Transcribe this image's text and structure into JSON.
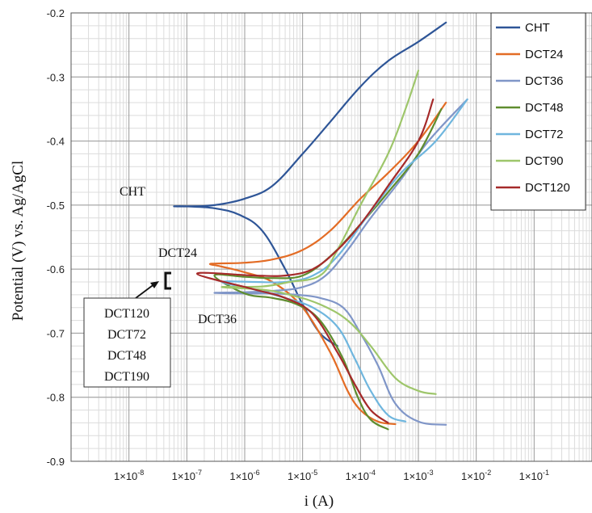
{
  "chart_data": {
    "type": "line",
    "title": "",
    "xlabel": "i (A)",
    "ylabel": "Potential (V)  vs. Ag/AgCl",
    "xscale": "log",
    "xlim": [
      1e-09,
      1
    ],
    "ylim": [
      -0.9,
      -0.2
    ],
    "x_tick_labels": [
      "1×10-8",
      "1×10-7",
      "1×10-6",
      "1×10-5",
      "1×10-4",
      "1×10-3",
      "1×10-2",
      "1×10-1"
    ],
    "y_tick_labels": [
      "-0.2",
      "-0.3",
      "-0.4",
      "-0.5",
      "-0.6",
      "-0.7",
      "-0.8",
      "-0.9"
    ],
    "grid": true,
    "legend_position": "top-right",
    "series": [
      {
        "name": "CHT",
        "color": "#2e5597",
        "x": [
          4e-05,
          2e-05,
          1e-05,
          5e-06,
          2e-06,
          8e-07,
          3e-07,
          1e-07,
          6e-08,
          1e-07,
          3e-07,
          1e-06,
          3e-06,
          1e-05,
          3e-05,
          0.0001,
          0.0003,
          0.001,
          0.003
        ],
        "y": [
          -0.72,
          -0.7,
          -0.655,
          -0.6,
          -0.54,
          -0.515,
          -0.505,
          -0.502,
          -0.502,
          -0.502,
          -0.5,
          -0.49,
          -0.47,
          -0.42,
          -0.37,
          -0.315,
          -0.275,
          -0.245,
          -0.215
        ]
      },
      {
        "name": "DCT24",
        "color": "#e36c25",
        "x": [
          0.0004,
          0.0002,
          0.0001,
          6e-05,
          3e-05,
          1e-05,
          3e-06,
          1e-06,
          4e-07,
          2.5e-07,
          4e-07,
          1e-06,
          3e-06,
          1e-05,
          3e-05,
          0.0001,
          0.0003,
          0.001,
          0.003
        ],
        "y": [
          -0.842,
          -0.838,
          -0.82,
          -0.79,
          -0.73,
          -0.66,
          -0.62,
          -0.605,
          -0.596,
          -0.592,
          -0.591,
          -0.59,
          -0.585,
          -0.57,
          -0.54,
          -0.49,
          -0.45,
          -0.4,
          -0.34
        ]
      },
      {
        "name": "DCT36",
        "color": "#8096c8",
        "x": [
          0.003,
          0.001,
          0.0004,
          0.0002,
          0.0001,
          5e-05,
          2e-05,
          8e-06,
          3e-06,
          1e-06,
          3e-07,
          1e-06,
          3e-06,
          1e-05,
          2.5e-05,
          6e-05,
          0.00015,
          0.0005,
          0.0015,
          0.007
        ],
        "y": [
          -0.843,
          -0.838,
          -0.81,
          -0.75,
          -0.7,
          -0.66,
          -0.645,
          -0.64,
          -0.638,
          -0.638,
          -0.637,
          -0.636,
          -0.634,
          -0.628,
          -0.61,
          -0.57,
          -0.52,
          -0.46,
          -0.4,
          -0.335
        ]
      },
      {
        "name": "DCT48",
        "color": "#5f8d2f",
        "x": [
          0.0003,
          0.00015,
          9e-05,
          5e-05,
          2e-05,
          8e-06,
          3e-06,
          1e-06,
          3e-07,
          1e-06,
          3e-06,
          1e-05,
          3e-05,
          0.0001,
          0.0003,
          0.001,
          0.0025
        ],
        "y": [
          -0.85,
          -0.835,
          -0.8,
          -0.74,
          -0.68,
          -0.655,
          -0.645,
          -0.638,
          -0.61,
          -0.612,
          -0.614,
          -0.61,
          -0.58,
          -0.53,
          -0.48,
          -0.42,
          -0.35
        ]
      },
      {
        "name": "DCT72",
        "color": "#6fb6de",
        "x": [
          0.0006,
          0.0003,
          0.00015,
          8e-05,
          4e-05,
          1.5e-05,
          5e-06,
          1.5e-06,
          4e-07,
          1.5e-06,
          5e-06,
          1.5e-05,
          4e-05,
          0.00015,
          0.0005,
          0.002,
          0.007
        ],
        "y": [
          -0.838,
          -0.828,
          -0.79,
          -0.74,
          -0.69,
          -0.66,
          -0.645,
          -0.632,
          -0.62,
          -0.62,
          -0.62,
          -0.61,
          -0.58,
          -0.51,
          -0.45,
          -0.4,
          -0.335
        ]
      },
      {
        "name": "DCT90",
        "color": "#9ec66b",
        "x": [
          0.002,
          0.001,
          0.0004,
          0.00015,
          6e-05,
          2e-05,
          6e-06,
          2e-06,
          4e-07,
          2e-06,
          6e-06,
          2e-05,
          4e-05,
          0.0001,
          0.0003,
          0.0006,
          0.001
        ],
        "y": [
          -0.795,
          -0.79,
          -0.77,
          -0.72,
          -0.68,
          -0.655,
          -0.64,
          -0.632,
          -0.628,
          -0.627,
          -0.62,
          -0.61,
          -0.57,
          -0.5,
          -0.42,
          -0.35,
          -0.29
        ]
      },
      {
        "name": "DCT120",
        "color": "#a52a2a",
        "x": [
          0.0003,
          0.00015,
          8e-05,
          4e-05,
          1.5e-05,
          5e-06,
          1.5e-06,
          1.5e-07,
          1.5e-06,
          5e-06,
          1.5e-05,
          4e-05,
          0.0001,
          0.0003,
          0.001,
          0.0018
        ],
        "y": [
          -0.84,
          -0.82,
          -0.78,
          -0.73,
          -0.67,
          -0.645,
          -0.632,
          -0.607,
          -0.61,
          -0.61,
          -0.6,
          -0.57,
          -0.53,
          -0.47,
          -0.4,
          -0.335
        ]
      }
    ],
    "annotations": {
      "cht": "CHT",
      "dct24": "DCT24",
      "dct36": "DCT36",
      "group_box": [
        "DCT120",
        "DCT72",
        "DCT48",
        "DCT190"
      ]
    }
  }
}
